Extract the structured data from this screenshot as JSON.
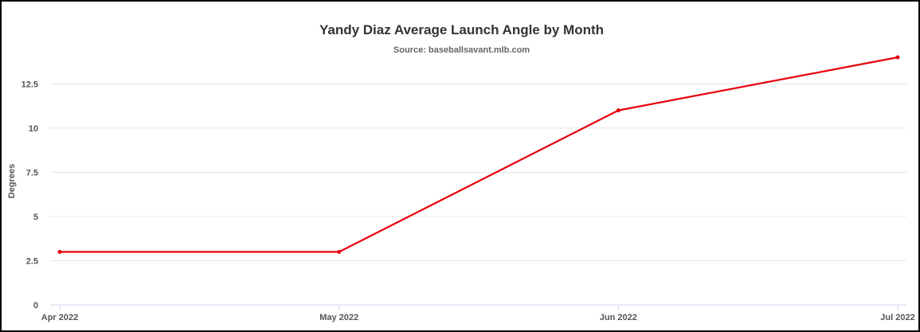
{
  "chart_data": {
    "type": "line",
    "title": "Yandy Diaz Average Launch Angle by Month",
    "subtitle": "Source: baseballsavant.mlb.com",
    "xlabel": "",
    "ylabel": "Degrees",
    "categories": [
      "Apr 2022",
      "May 2022",
      "Jun 2022",
      "Jul 2022"
    ],
    "series": [
      {
        "values": [
          3,
          3,
          11,
          14
        ],
        "color": "#e8000b"
      }
    ],
    "ylim": [
      0,
      14
    ],
    "yticks": [
      "0",
      "2.5",
      "5",
      "7.5",
      "10",
      "12.5"
    ],
    "grid": true,
    "legend": "none"
  }
}
